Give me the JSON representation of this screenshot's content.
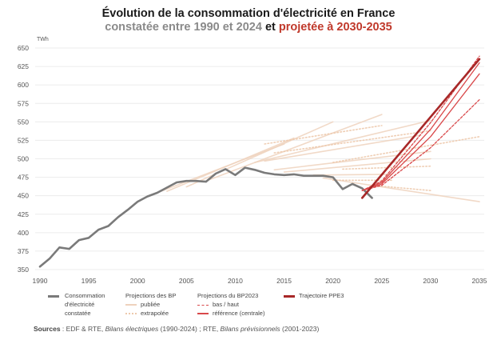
{
  "title": "Évolution de la consommation d'électricité en France",
  "subtitle": {
    "part1": "constatée entre 1990 et 2024",
    "part2": " et ",
    "part3": "projetée à 2030-2035"
  },
  "colors": {
    "observed": "#7a7a7a",
    "bp_published": "#eed2bd",
    "bp_extrapolated": "#edc9ac",
    "bp2023": "#d9484a",
    "ppe3": "#a82828",
    "grid": "#ececec",
    "subtitle_grey": "#8a8a8a",
    "subtitle_red": "#c0392b"
  },
  "legend": {
    "observed": "Consommation d'électricité constatée",
    "observed_lines": [
      "Consommation",
      "d'électricité",
      "constatée"
    ],
    "bp_title": "Projections des  BP",
    "bp_published": "publiée",
    "bp_extrapolated": "extrapolée",
    "bp2023_title": "Projections du BP2023",
    "bp2023_lowhigh": "bas / haut",
    "bp2023_ref": "référence (centrale)",
    "ppe3": "Trajectoire PPE3"
  },
  "sources": {
    "label": "Sources",
    "text": " : EDF & RTE, ",
    "ref1": "Bilans électriques",
    "text2": " (1990-2024) ; RTE, ",
    "ref2": "Bilans prévisionnels",
    "text3": " (2001-2023)"
  },
  "chart_data": {
    "type": "line",
    "title": "Évolution de la consommation d'électricité en France",
    "subtitle": "constatée entre 1990 et 2024 et projetée à 2030-2035",
    "ylabel": "TWh",
    "xlabel": "",
    "xlim": [
      1990,
      2035
    ],
    "ylim": [
      350,
      650
    ],
    "yticks": [
      350,
      375,
      400,
      425,
      450,
      475,
      500,
      525,
      550,
      575,
      600,
      625,
      650
    ],
    "xticks": [
      1990,
      1995,
      2000,
      2005,
      2010,
      2015,
      2020,
      2025,
      2030,
      2035
    ],
    "grid": true,
    "legend_position": "bottom",
    "series": [
      {
        "name": "Consommation d'électricité constatée",
        "style": "observed",
        "x": [
          1990,
          1991,
          1992,
          1993,
          1994,
          1995,
          1996,
          1997,
          1998,
          1999,
          2000,
          2001,
          2002,
          2003,
          2004,
          2005,
          2006,
          2007,
          2008,
          2009,
          2010,
          2011,
          2012,
          2013,
          2014,
          2015,
          2016,
          2017,
          2018,
          2019,
          2020,
          2021,
          2022,
          2023,
          2024
        ],
        "values": [
          354,
          365,
          380,
          378,
          390,
          393,
          404,
          409,
          421,
          431,
          442,
          449,
          454,
          461,
          468,
          470,
          470,
          469,
          480,
          486,
          478,
          488,
          485,
          481,
          479,
          478,
          479,
          477,
          477,
          477,
          475,
          459,
          466,
          460,
          447
        ]
      },
      {
        "name": "Projections des BP (publiée) 2001",
        "style": "bp_published",
        "x": [
          2001,
          2015
        ],
        "values": [
          449,
          520
        ]
      },
      {
        "name": "Projections des BP (publiée) 2003",
        "style": "bp_published",
        "x": [
          2003,
          2016
        ],
        "values": [
          456,
          528
        ]
      },
      {
        "name": "Projections des BP (publiée) 2005",
        "style": "bp_published",
        "x": [
          2005,
          2020
        ],
        "values": [
          462,
          550
        ]
      },
      {
        "name": "Projections des BP (publiée) 2007",
        "style": "bp_published",
        "x": [
          2007,
          2025
        ],
        "values": [
          470,
          560
        ]
      },
      {
        "name": "Projections des BP (extrapolée) 2007",
        "style": "bp_extrapolated",
        "x": [
          2013,
          2025
        ],
        "values": [
          520,
          545
        ]
      },
      {
        "name": "Projections des BP (publiée) 2009",
        "style": "bp_published",
        "x": [
          2012,
          2030
        ],
        "values": [
          495,
          552
        ]
      },
      {
        "name": "Projections des BP (publiée) 2011",
        "style": "bp_published",
        "x": [
          2013,
          2029
        ],
        "values": [
          497,
          532
        ]
      },
      {
        "name": "Projections des BP (extrapolée) 2011",
        "style": "bp_extrapolated",
        "x": [
          2014,
          2030
        ],
        "values": [
          508,
          538
        ]
      },
      {
        "name": "Projections des BP (publiée) 2014",
        "style": "bp_published",
        "x": [
          2014,
          2030
        ],
        "values": [
          485,
          510
        ]
      },
      {
        "name": "Projections des BP (extrapolée) 2014",
        "style": "bp_extrapolated",
        "x": [
          2020,
          2035
        ],
        "values": [
          495,
          530
        ]
      },
      {
        "name": "Projections des BP (publiée) 2017",
        "style": "bp_published",
        "x": [
          2015,
          2030
        ],
        "values": [
          482,
          500
        ]
      },
      {
        "name": "Projections des BP (extrapolée) 2017",
        "style": "bp_extrapolated",
        "x": [
          2021,
          2030
        ],
        "values": [
          486,
          490
        ]
      },
      {
        "name": "Projections des BP (publiée) 2019",
        "style": "bp_published",
        "x": [
          2018,
          2026
        ],
        "values": [
          478,
          479
        ]
      },
      {
        "name": "Projections des BP (extrapolée) 2019",
        "style": "bp_extrapolated",
        "x": [
          2020,
          2026
        ],
        "values": [
          471,
          471
        ]
      },
      {
        "name": "Projections des BP (publiée) 2021",
        "style": "bp_published",
        "x": [
          2019,
          2035
        ],
        "values": [
          474,
          442
        ]
      },
      {
        "name": "Projections des BP (extrapolée) 2021",
        "style": "bp_extrapolated",
        "x": [
          2024,
          2030
        ],
        "values": [
          464,
          457
        ]
      },
      {
        "name": "BP2023 haut",
        "style": "bp2023_dash",
        "x": [
          2023,
          2025,
          2030,
          2035
        ],
        "values": [
          457,
          470,
          549,
          639
        ]
      },
      {
        "name": "BP2023 référence (centrale) A",
        "style": "bp2023_solid",
        "x": [
          2023,
          2025,
          2030,
          2035
        ],
        "values": [
          457,
          468,
          540,
          630
        ]
      },
      {
        "name": "BP2023 référence (centrale) B",
        "style": "bp2023_solid",
        "x": [
          2023,
          2025,
          2030,
          2035
        ],
        "values": [
          457,
          466,
          530,
          615
        ]
      },
      {
        "name": "BP2023 bas",
        "style": "bp2023_dash",
        "x": [
          2023,
          2025,
          2030,
          2035
        ],
        "values": [
          457,
          464,
          515,
          580
        ]
      },
      {
        "name": "Trajectoire PPE3",
        "style": "ppe3",
        "x": [
          2023,
          2035
        ],
        "values": [
          447,
          635
        ]
      }
    ]
  }
}
